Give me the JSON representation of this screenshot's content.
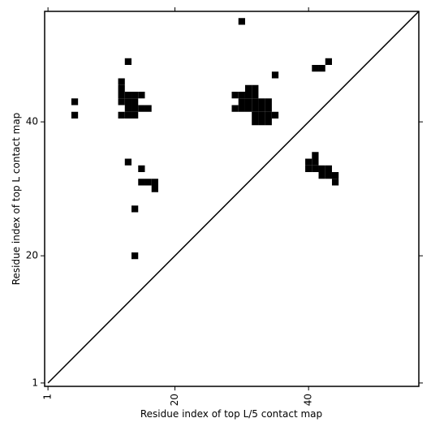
{
  "chart_data": {
    "type": "contact_map",
    "xlabel": "Residue index of top L/5 contact map",
    "ylabel": "Residue index of top L contact map",
    "color": "#000000",
    "x": [
      30,
      13,
      43,
      41,
      42,
      35,
      5,
      5,
      12,
      12,
      12,
      13,
      14,
      15,
      12,
      13,
      14,
      13,
      14,
      15,
      16,
      12,
      13,
      14,
      31,
      32,
      29,
      30,
      31,
      32,
      30,
      31,
      32,
      33,
      34,
      29,
      30,
      31,
      32,
      33,
      34,
      32,
      33,
      34,
      35,
      32,
      33,
      34,
      13,
      15,
      15,
      16,
      17,
      17,
      14,
      14,
      41,
      40,
      41,
      40,
      41,
      42,
      43,
      42,
      43,
      44,
      44
    ],
    "values": [
      55,
      49,
      49,
      48,
      48,
      47,
      43,
      41,
      46,
      45,
      44,
      44,
      44,
      44,
      43,
      43,
      43,
      42,
      42,
      42,
      42,
      41,
      41,
      41,
      45,
      45,
      44,
      44,
      44,
      44,
      43,
      43,
      43,
      43,
      43,
      42,
      42,
      42,
      42,
      42,
      42,
      41,
      41,
      41,
      41,
      40,
      40,
      40,
      34,
      33,
      31,
      31,
      31,
      30,
      27,
      20,
      35,
      34,
      34,
      33,
      33,
      33,
      33,
      32,
      32,
      32,
      31
    ],
    "xlim": [
      0.5,
      56.5
    ],
    "ylim": [
      0.5,
      56.5
    ],
    "xticks": [
      1,
      20,
      40
    ],
    "yticks": [
      1,
      20,
      40
    ]
  }
}
